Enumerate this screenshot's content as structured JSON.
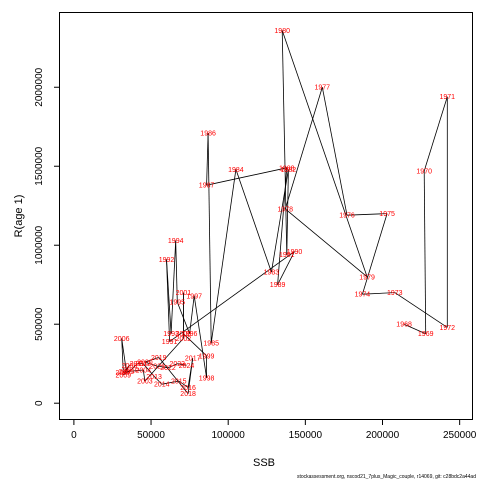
{
  "chart_data": {
    "type": "line",
    "xlabel": "SSB",
    "ylabel": "R(age 1)",
    "xlim": [
      -9000,
      258000
    ],
    "ylim": [
      -100000,
      2470000
    ],
    "x_ticks": [
      0,
      50000,
      100000,
      150000,
      200000,
      250000
    ],
    "y_ticks": [
      0,
      500000,
      1000000,
      1500000,
      2000000
    ],
    "line_color": "#000000",
    "label_color": "#ff0000",
    "grid": false,
    "points": [
      {
        "label": "1968",
        "x": 214000,
        "y": 500000
      },
      {
        "label": "1969",
        "x": 228000,
        "y": 440000
      },
      {
        "label": "1970",
        "x": 227000,
        "y": 1470000
      },
      {
        "label": "1971",
        "x": 242000,
        "y": 1940000
      },
      {
        "label": "1972",
        "x": 242000,
        "y": 480000
      },
      {
        "label": "1973",
        "x": 208000,
        "y": 700000
      },
      {
        "label": "1974",
        "x": 187000,
        "y": 690000
      },
      {
        "label": "1975",
        "x": 203000,
        "y": 1200000
      },
      {
        "label": "1976",
        "x": 177000,
        "y": 1190000
      },
      {
        "label": "1977",
        "x": 161000,
        "y": 2000000
      },
      {
        "label": "1978",
        "x": 137000,
        "y": 1230000
      },
      {
        "label": "1979",
        "x": 190000,
        "y": 800000
      },
      {
        "label": "1980",
        "x": 135000,
        "y": 2360000
      },
      {
        "label": "1981",
        "x": 138000,
        "y": 940000
      },
      {
        "label": "1982",
        "x": 139000,
        "y": 1480000
      },
      {
        "label": "1983",
        "x": 128000,
        "y": 830000
      },
      {
        "label": "1984",
        "x": 105000,
        "y": 1480000
      },
      {
        "label": "1985",
        "x": 89000,
        "y": 380000
      },
      {
        "label": "1986",
        "x": 87000,
        "y": 1710000
      },
      {
        "label": "1987",
        "x": 86000,
        "y": 1380000
      },
      {
        "label": "1988",
        "x": 138000,
        "y": 1490000
      },
      {
        "label": "1989",
        "x": 132000,
        "y": 750000
      },
      {
        "label": "1990",
        "x": 143000,
        "y": 960000
      },
      {
        "label": "1991",
        "x": 62000,
        "y": 390000
      },
      {
        "label": "1992",
        "x": 60000,
        "y": 910000
      },
      {
        "label": "1993",
        "x": 63000,
        "y": 440000
      },
      {
        "label": "1994",
        "x": 66000,
        "y": 1030000
      },
      {
        "label": "1995",
        "x": 67000,
        "y": 640000
      },
      {
        "label": "1996",
        "x": 75000,
        "y": 440000
      },
      {
        "label": "1997",
        "x": 78000,
        "y": 680000
      },
      {
        "label": "1998",
        "x": 86000,
        "y": 160000
      },
      {
        "label": "1999",
        "x": 86000,
        "y": 300000
      },
      {
        "label": "2000",
        "x": 71000,
        "y": 440000
      },
      {
        "label": "2001",
        "x": 71000,
        "y": 700000
      },
      {
        "label": "2002",
        "x": 71000,
        "y": 410000
      },
      {
        "label": "2003",
        "x": 46000,
        "y": 140000
      },
      {
        "label": "2004",
        "x": 45000,
        "y": 210000
      },
      {
        "label": "2005",
        "x": 34000,
        "y": 200000
      },
      {
        "label": "2006",
        "x": 31000,
        "y": 410000
      },
      {
        "label": "2007",
        "x": 32000,
        "y": 195000
      },
      {
        "label": "2008",
        "x": 36000,
        "y": 240000
      },
      {
        "label": "2009",
        "x": 32000,
        "y": 180000
      },
      {
        "label": "2010",
        "x": 37000,
        "y": 210000
      },
      {
        "label": "2011",
        "x": 41000,
        "y": 250000
      },
      {
        "label": "2012",
        "x": 45000,
        "y": 250000
      },
      {
        "label": "2013",
        "x": 52000,
        "y": 170000
      },
      {
        "label": "2014",
        "x": 57000,
        "y": 120000
      },
      {
        "label": "2015",
        "x": 68000,
        "y": 140000
      },
      {
        "label": "2016",
        "x": 74000,
        "y": 100000
      },
      {
        "label": "2017",
        "x": 77000,
        "y": 285000
      },
      {
        "label": "2018",
        "x": 74000,
        "y": 60000
      },
      {
        "label": "2019",
        "x": 55000,
        "y": 290000
      },
      {
        "label": "2020",
        "x": 46000,
        "y": 260000
      },
      {
        "label": "2021",
        "x": 54000,
        "y": 235000
      },
      {
        "label": "2022",
        "x": 61000,
        "y": 225000
      },
      {
        "label": "2023",
        "x": 67000,
        "y": 250000
      },
      {
        "label": "2024",
        "x": 73000,
        "y": 240000
      }
    ]
  },
  "footer": "stockassessment.org, nscod21_7plus_Magic_couple, r14069, git: c28bdc2a44ad"
}
